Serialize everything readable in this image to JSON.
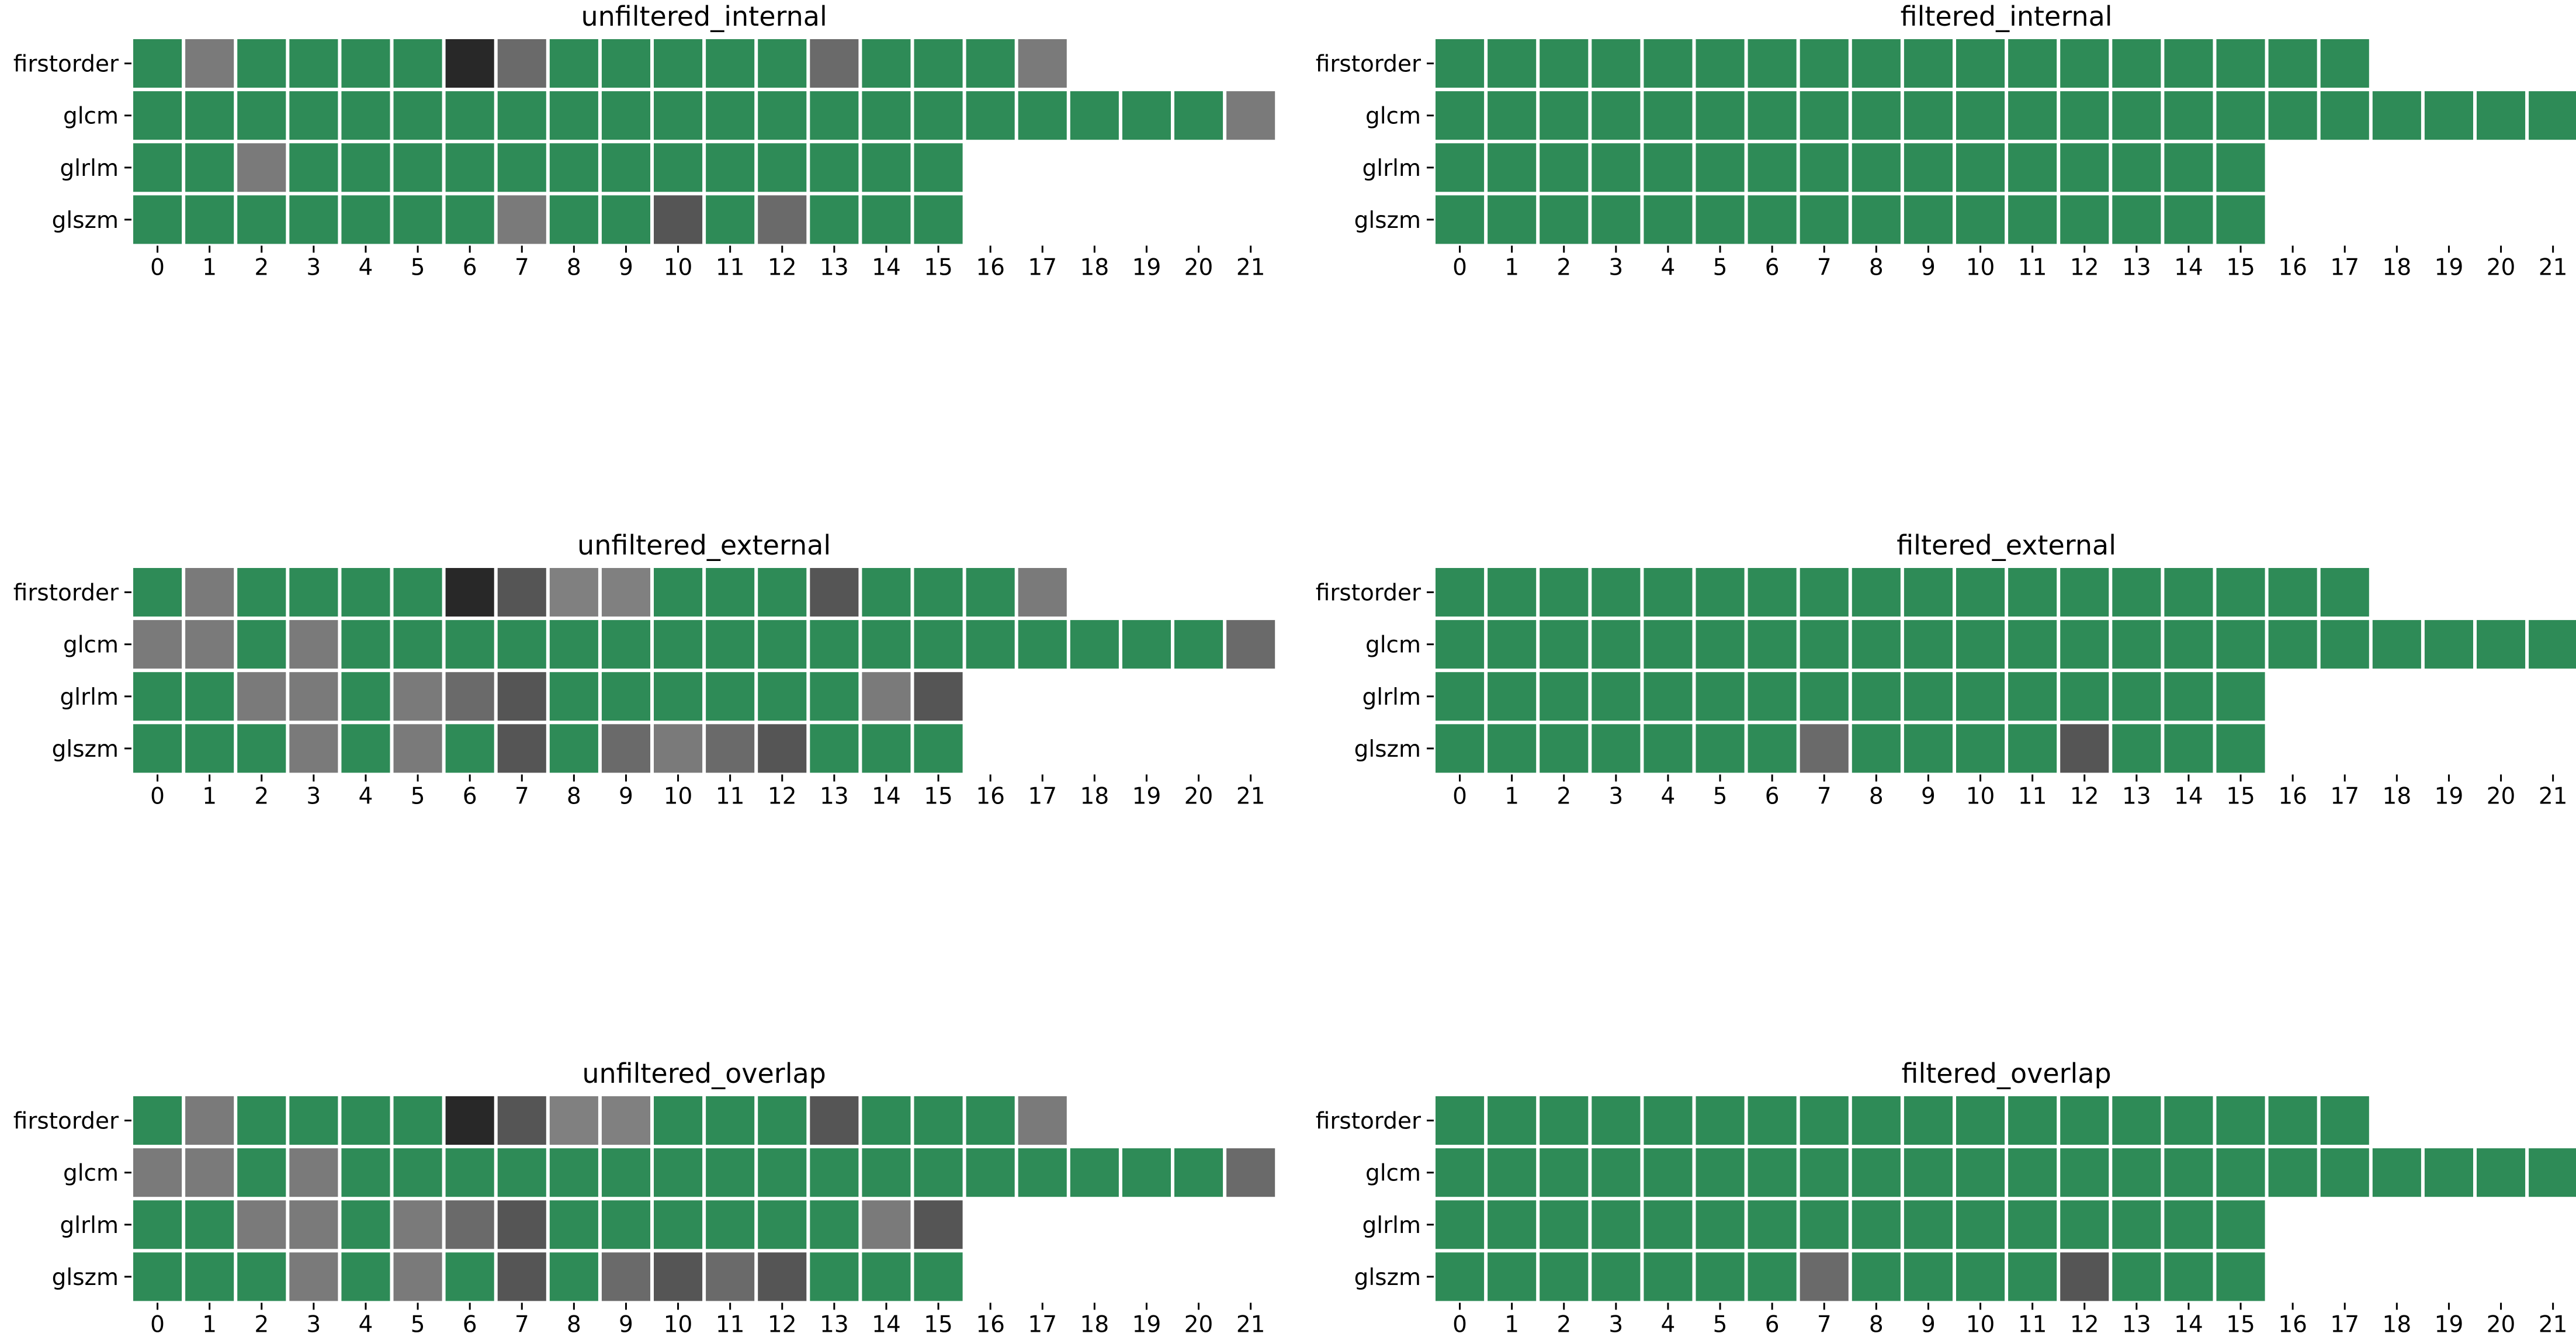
{
  "chart_data": [
    {
      "type": "heatmap",
      "title": "unfiltered_internal",
      "rows": [
        "firstorder",
        "glcm",
        "glrlm",
        "glszm"
      ],
      "columns": [
        0,
        1,
        2,
        3,
        4,
        5,
        6,
        7,
        8,
        9,
        10,
        11,
        12,
        13,
        14,
        15,
        16,
        17,
        18,
        19,
        20,
        21
      ],
      "row_lengths": [
        18,
        22,
        16,
        16
      ],
      "cells": [
        [
          "G",
          "M",
          "G",
          "G",
          "G",
          "G",
          "K",
          "D",
          "G",
          "G",
          "G",
          "G",
          "G",
          "D",
          "G",
          "G",
          "G",
          "M"
        ],
        [
          "G",
          "G",
          "G",
          "G",
          "G",
          "G",
          "G",
          "G",
          "G",
          "G",
          "G",
          "G",
          "G",
          "G",
          "G",
          "G",
          "G",
          "G",
          "G",
          "G",
          "G",
          "M"
        ],
        [
          "G",
          "G",
          "M",
          "G",
          "G",
          "G",
          "G",
          "G",
          "G",
          "G",
          "G",
          "G",
          "G",
          "G",
          "G",
          "G"
        ],
        [
          "G",
          "G",
          "G",
          "G",
          "G",
          "G",
          "G",
          "M",
          "G",
          "G",
          "X",
          "G",
          "D",
          "G",
          "G",
          "G"
        ]
      ]
    },
    {
      "type": "heatmap",
      "title": "filtered_internal",
      "rows": [
        "firstorder",
        "glcm",
        "glrlm",
        "glszm"
      ],
      "columns": [
        0,
        1,
        2,
        3,
        4,
        5,
        6,
        7,
        8,
        9,
        10,
        11,
        12,
        13,
        14,
        15,
        16,
        17,
        18,
        19,
        20,
        21
      ],
      "row_lengths": [
        18,
        22,
        16,
        16
      ],
      "cells": [
        [
          "G",
          "G",
          "G",
          "G",
          "G",
          "G",
          "G",
          "G",
          "G",
          "G",
          "G",
          "G",
          "G",
          "G",
          "G",
          "G",
          "G",
          "G"
        ],
        [
          "G",
          "G",
          "G",
          "G",
          "G",
          "G",
          "G",
          "G",
          "G",
          "G",
          "G",
          "G",
          "G",
          "G",
          "G",
          "G",
          "G",
          "G",
          "G",
          "G",
          "G",
          "G"
        ],
        [
          "G",
          "G",
          "G",
          "G",
          "G",
          "G",
          "G",
          "G",
          "G",
          "G",
          "G",
          "G",
          "G",
          "G",
          "G",
          "G"
        ],
        [
          "G",
          "G",
          "G",
          "G",
          "G",
          "G",
          "G",
          "G",
          "G",
          "G",
          "G",
          "G",
          "G",
          "G",
          "G",
          "G"
        ]
      ]
    },
    {
      "type": "heatmap",
      "title": "unfiltered_external",
      "rows": [
        "firstorder",
        "glcm",
        "glrlm",
        "glszm"
      ],
      "columns": [
        0,
        1,
        2,
        3,
        4,
        5,
        6,
        7,
        8,
        9,
        10,
        11,
        12,
        13,
        14,
        15,
        16,
        17,
        18,
        19,
        20,
        21
      ],
      "row_lengths": [
        18,
        22,
        16,
        16
      ],
      "cells": [
        [
          "G",
          "M",
          "G",
          "G",
          "G",
          "G",
          "K",
          "X",
          "L",
          "L",
          "G",
          "G",
          "G",
          "X",
          "G",
          "G",
          "G",
          "M"
        ],
        [
          "M",
          "M",
          "G",
          "M",
          "G",
          "G",
          "G",
          "G",
          "G",
          "G",
          "G",
          "G",
          "G",
          "G",
          "G",
          "G",
          "G",
          "G",
          "G",
          "G",
          "G",
          "D"
        ],
        [
          "G",
          "G",
          "M",
          "M",
          "G",
          "M",
          "D",
          "X",
          "G",
          "G",
          "G",
          "G",
          "G",
          "G",
          "M",
          "X"
        ],
        [
          "G",
          "G",
          "G",
          "M",
          "G",
          "M",
          "G",
          "X",
          "G",
          "D",
          "M",
          "D",
          "X",
          "G",
          "G",
          "G"
        ]
      ]
    },
    {
      "type": "heatmap",
      "title": "filtered_external",
      "rows": [
        "firstorder",
        "glcm",
        "glrlm",
        "glszm"
      ],
      "columns": [
        0,
        1,
        2,
        3,
        4,
        5,
        6,
        7,
        8,
        9,
        10,
        11,
        12,
        13,
        14,
        15,
        16,
        17,
        18,
        19,
        20,
        21
      ],
      "row_lengths": [
        18,
        22,
        16,
        16
      ],
      "cells": [
        [
          "G",
          "G",
          "G",
          "G",
          "G",
          "G",
          "G",
          "G",
          "G",
          "G",
          "G",
          "G",
          "G",
          "G",
          "G",
          "G",
          "G",
          "G"
        ],
        [
          "G",
          "G",
          "G",
          "G",
          "G",
          "G",
          "G",
          "G",
          "G",
          "G",
          "G",
          "G",
          "G",
          "G",
          "G",
          "G",
          "G",
          "G",
          "G",
          "G",
          "G",
          "G"
        ],
        [
          "G",
          "G",
          "G",
          "G",
          "G",
          "G",
          "G",
          "G",
          "G",
          "G",
          "G",
          "G",
          "G",
          "G",
          "G",
          "G"
        ],
        [
          "G",
          "G",
          "G",
          "G",
          "G",
          "G",
          "G",
          "D",
          "G",
          "G",
          "G",
          "G",
          "X",
          "G",
          "G",
          "G"
        ]
      ]
    },
    {
      "type": "heatmap",
      "title": "unfiltered_overlap",
      "rows": [
        "firstorder",
        "glcm",
        "glrlm",
        "glszm"
      ],
      "columns": [
        0,
        1,
        2,
        3,
        4,
        5,
        6,
        7,
        8,
        9,
        10,
        11,
        12,
        13,
        14,
        15,
        16,
        17,
        18,
        19,
        20,
        21
      ],
      "row_lengths": [
        18,
        22,
        16,
        16
      ],
      "cells": [
        [
          "G",
          "M",
          "G",
          "G",
          "G",
          "G",
          "K",
          "X",
          "L",
          "L",
          "G",
          "G",
          "G",
          "X",
          "G",
          "G",
          "G",
          "M"
        ],
        [
          "M",
          "M",
          "G",
          "M",
          "G",
          "G",
          "G",
          "G",
          "G",
          "G",
          "G",
          "G",
          "G",
          "G",
          "G",
          "G",
          "G",
          "G",
          "G",
          "G",
          "G",
          "D"
        ],
        [
          "G",
          "G",
          "M",
          "M",
          "G",
          "M",
          "D",
          "X",
          "G",
          "G",
          "G",
          "G",
          "G",
          "G",
          "M",
          "X"
        ],
        [
          "G",
          "G",
          "G",
          "M",
          "G",
          "M",
          "G",
          "X",
          "G",
          "D",
          "X",
          "D",
          "X",
          "G",
          "G",
          "G"
        ]
      ]
    },
    {
      "type": "heatmap",
      "title": "filtered_overlap",
      "rows": [
        "firstorder",
        "glcm",
        "glrlm",
        "glszm"
      ],
      "columns": [
        0,
        1,
        2,
        3,
        4,
        5,
        6,
        7,
        8,
        9,
        10,
        11,
        12,
        13,
        14,
        15,
        16,
        17,
        18,
        19,
        20,
        21
      ],
      "row_lengths": [
        18,
        22,
        16,
        16
      ],
      "cells": [
        [
          "G",
          "G",
          "G",
          "G",
          "G",
          "G",
          "G",
          "G",
          "G",
          "G",
          "G",
          "G",
          "G",
          "G",
          "G",
          "G",
          "G",
          "G"
        ],
        [
          "G",
          "G",
          "G",
          "G",
          "G",
          "G",
          "G",
          "G",
          "G",
          "G",
          "G",
          "G",
          "G",
          "G",
          "G",
          "G",
          "G",
          "G",
          "G",
          "G",
          "G",
          "G"
        ],
        [
          "G",
          "G",
          "G",
          "G",
          "G",
          "G",
          "G",
          "G",
          "G",
          "G",
          "G",
          "G",
          "G",
          "G",
          "G",
          "G"
        ],
        [
          "G",
          "G",
          "G",
          "G",
          "G",
          "G",
          "G",
          "D",
          "G",
          "G",
          "G",
          "G",
          "X",
          "G",
          "G",
          "G"
        ]
      ]
    }
  ],
  "colors": {
    "G": "#2e8b57",
    "L": "#808080",
    "M": "#7a7a7a",
    "D": "#6a6a6a",
    "X": "#555555",
    "K": "#282828",
    "background": "#ffffff",
    "cell_border": "#ffffff"
  }
}
